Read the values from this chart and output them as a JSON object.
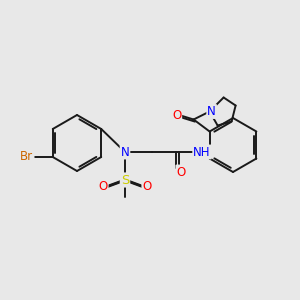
{
  "bg_color": "#e8e8e8",
  "bond_color": "#1a1a1a",
  "atom_colors": {
    "Br": "#cc6600",
    "N": "#0000ff",
    "S": "#cccc00",
    "O": "#ff0000",
    "H": "#777777",
    "C": "#1a1a1a"
  },
  "fig_width": 3.0,
  "fig_height": 3.0,
  "dpi": 100
}
